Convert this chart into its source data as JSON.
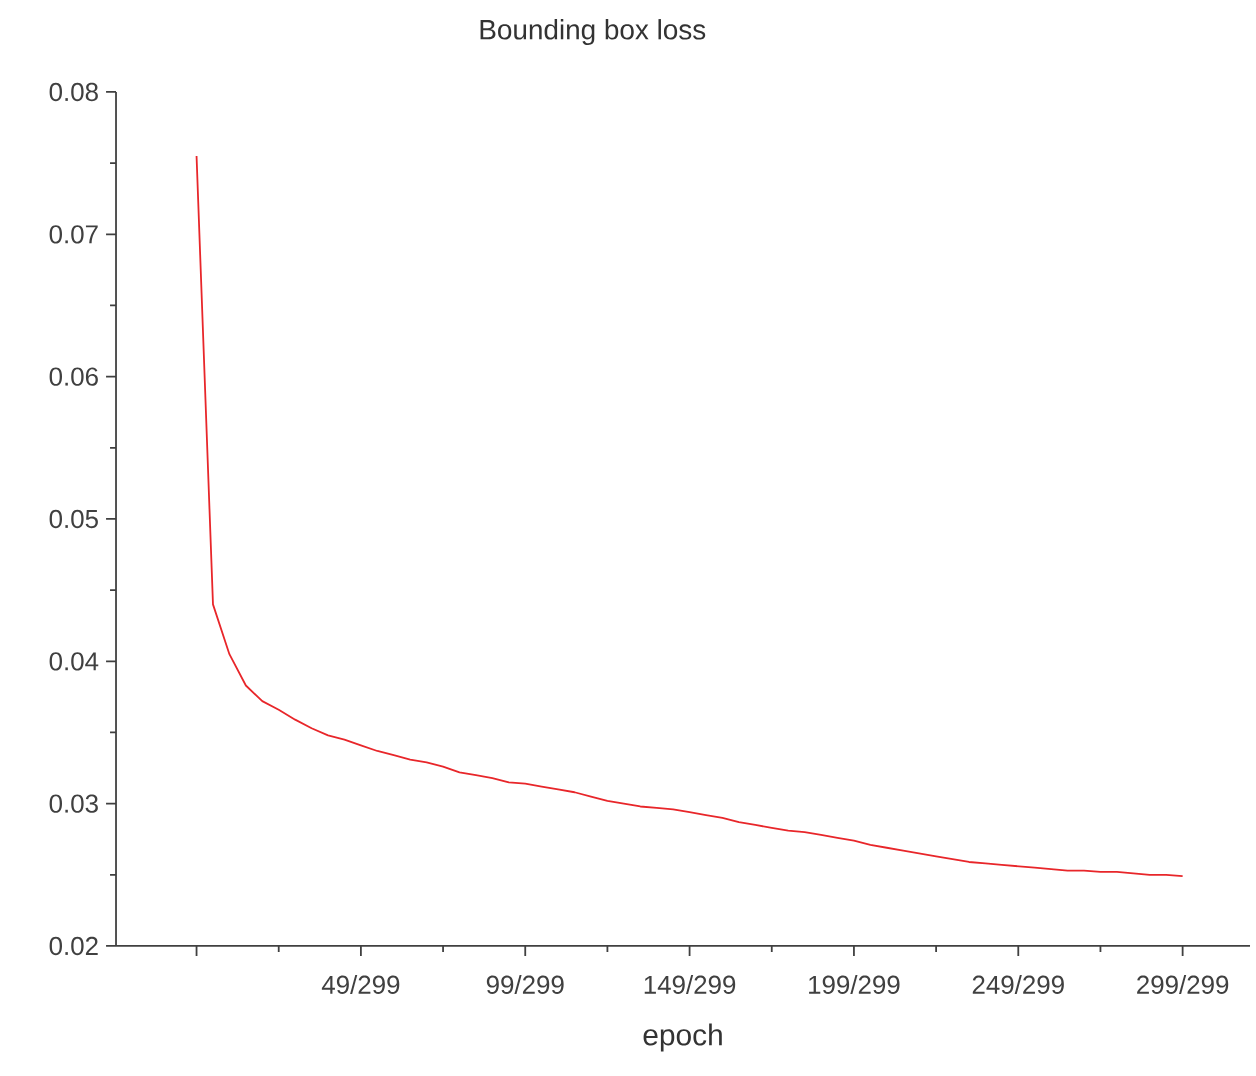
{
  "chart_data": {
    "type": "line",
    "title": "Bounding box loss",
    "xlabel": "epoch",
    "categories": [
      null,
      null,
      null,
      null,
      null,
      null,
      null,
      null,
      null,
      null,
      "49/299",
      null,
      null,
      null,
      null,
      null,
      null,
      null,
      null,
      null,
      "99/299",
      null,
      null,
      null,
      null,
      null,
      null,
      null,
      null,
      null,
      "149/299",
      null,
      null,
      null,
      null,
      null,
      null,
      null,
      null,
      null,
      "199/299",
      null,
      null,
      null,
      null,
      null,
      null,
      null,
      null,
      null,
      "249/299",
      null,
      null,
      null,
      null,
      null,
      null,
      null,
      null,
      null,
      "299/299"
    ],
    "series": [
      {
        "color": "#e8262a",
        "values": [
          0.0755,
          0.044,
          0.0405,
          0.0383,
          0.0372,
          0.0366,
          0.0359,
          0.0353,
          0.0348,
          0.0345,
          0.0341,
          0.0337,
          0.0334,
          0.0331,
          0.0329,
          0.0326,
          0.0322,
          0.032,
          0.0318,
          0.0315,
          0.0314,
          0.0312,
          0.031,
          0.0308,
          0.0305,
          0.0302,
          0.03,
          0.0298,
          0.0297,
          0.0296,
          0.0294,
          0.0292,
          0.029,
          0.0287,
          0.0285,
          0.0283,
          0.0281,
          0.028,
          0.0278,
          0.0276,
          0.0274,
          0.0271,
          0.0269,
          0.0267,
          0.0265,
          0.0263,
          0.0261,
          0.0259,
          0.0258,
          0.0257,
          0.0256,
          0.0255,
          0.0254,
          0.0253,
          0.0253,
          0.0252,
          0.0252,
          0.0251,
          0.025,
          0.025,
          0.0249
        ]
      }
    ],
    "ylim": [
      0.02,
      0.08
    ],
    "yticks": [
      {
        "value": 0.02,
        "label": "0.02"
      },
      {
        "value": 0.03,
        "label": "0.03"
      },
      {
        "value": 0.04,
        "label": "0.04"
      },
      {
        "value": 0.05,
        "label": "0.05"
      },
      {
        "value": 0.06,
        "label": "0.06"
      },
      {
        "value": 0.07,
        "label": "0.07"
      },
      {
        "value": 0.08,
        "label": "0.08"
      }
    ],
    "grid": false,
    "marker": "none",
    "line_style": "solid"
  }
}
